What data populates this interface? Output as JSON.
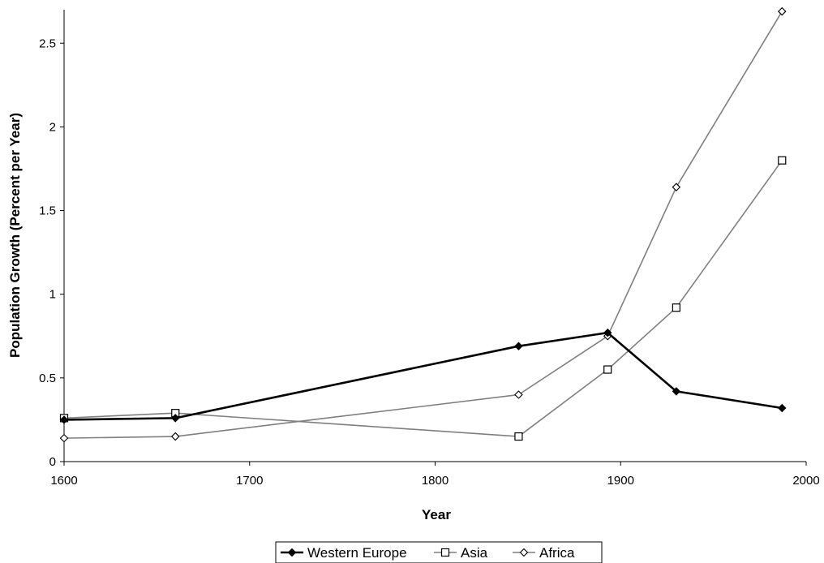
{
  "chart_data": {
    "type": "line",
    "title": "",
    "xlabel": "Year",
    "ylabel": "Population Growth (Percent per Year)",
    "xlim": [
      1600,
      2000
    ],
    "ylim": [
      0,
      2.7
    ],
    "x_ticks": [
      1600,
      1700,
      1800,
      1900,
      2000
    ],
    "y_ticks": [
      0,
      0.5,
      1,
      1.5,
      2,
      2.5
    ],
    "x_tick_labels": [
      "1600",
      "1700",
      "1800",
      "1900",
      "2000"
    ],
    "y_tick_labels": [
      "0",
      "0.5",
      "1",
      "1.5",
      "2",
      "2.5"
    ],
    "grid": false,
    "legend_position": "bottom",
    "series": [
      {
        "name": "Western Europe",
        "marker": "diamond-filled",
        "color": "#000000",
        "x": [
          1600,
          1660,
          1845,
          1893,
          1930,
          1987
        ],
        "y": [
          0.25,
          0.26,
          0.69,
          0.77,
          0.42,
          0.32
        ]
      },
      {
        "name": "Asia",
        "marker": "square-open",
        "color": "#7f7f7f",
        "x": [
          1600,
          1660,
          1845,
          1893,
          1930,
          1987
        ],
        "y": [
          0.26,
          0.29,
          0.15,
          0.55,
          0.92,
          1.8
        ]
      },
      {
        "name": "Africa",
        "marker": "diamond-open",
        "color": "#7f7f7f",
        "x": [
          1600,
          1660,
          1845,
          1893,
          1930,
          1987
        ],
        "y": [
          0.14,
          0.15,
          0.4,
          0.75,
          1.64,
          2.69
        ]
      }
    ]
  }
}
